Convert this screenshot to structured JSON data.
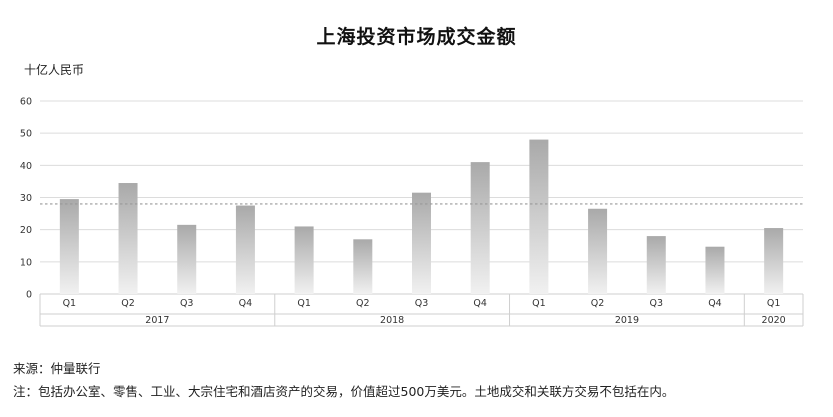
{
  "title": "上海投资市场成交金额",
  "unit": "十亿人民币",
  "source": "来源：仲量联行",
  "note": "注：包括办公室、零售、工业、大宗住宅和酒店资产的交易，价值超过500万美元。土地成交和关联方交易不包括在内。",
  "colors": {
    "bar_top": "#a9a9a9",
    "bar_bottom": "#f1f1f1",
    "grid": "#dcdcdc",
    "average_line": "#999999"
  },
  "chart_data": {
    "type": "bar",
    "title": "上海投资市场成交金额",
    "ylabel": "十亿人民币",
    "xlabel": "",
    "ylim": [
      0,
      60
    ],
    "yticks": [
      0,
      10,
      20,
      30,
      40,
      50,
      60
    ],
    "grid": true,
    "average_line": 28,
    "categories": [
      "Q1",
      "Q2",
      "Q3",
      "Q4",
      "Q1",
      "Q2",
      "Q3",
      "Q4",
      "Q1",
      "Q2",
      "Q3",
      "Q4",
      "Q1"
    ],
    "years": [
      {
        "label": "2017",
        "count": 4
      },
      {
        "label": "2018",
        "count": 4
      },
      {
        "label": "2019",
        "count": 4
      },
      {
        "label": "2020",
        "count": 1
      }
    ],
    "values": [
      29.5,
      34.5,
      21.5,
      27.5,
      21,
      17,
      31.5,
      41,
      48,
      26.5,
      18,
      14.7,
      20.5
    ]
  }
}
